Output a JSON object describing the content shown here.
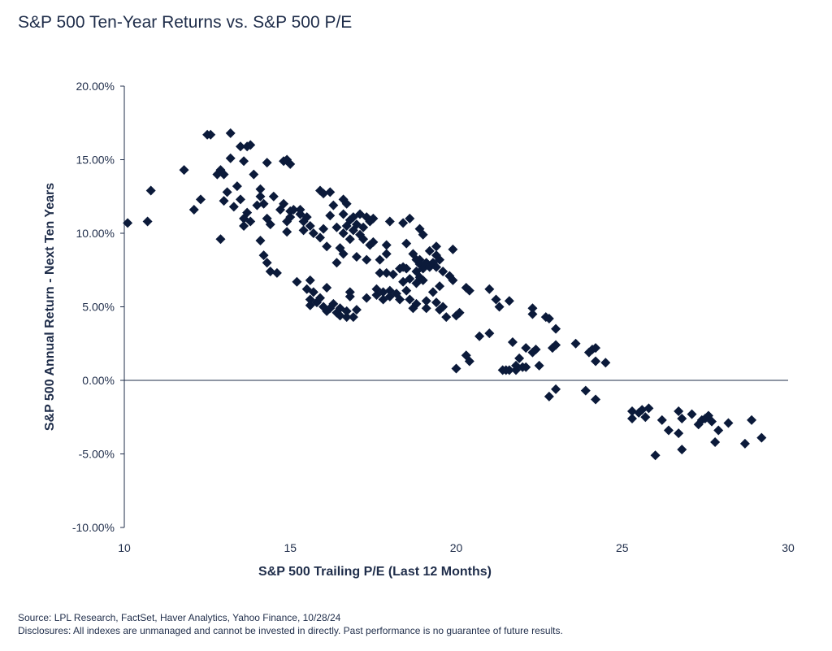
{
  "title": "S&P 500 Ten-Year Returns vs. S&P 500 P/E",
  "footnotes": {
    "source": "Source: LPL Research, FactSet, Haver Analytics, Yahoo Finance, 10/28/24",
    "disclosure": "Disclosures: All indexes are unmanaged and cannot be invested in directly. Past performance is no guarantee of future results."
  },
  "colors": {
    "marker": "#0b1a3a",
    "text": "#1f2d4a",
    "axis": "#1f2d4a"
  },
  "chart_data": {
    "type": "scatter",
    "title": "S&P 500 Ten-Year Returns vs. S&P 500 P/E",
    "xlabel": "S&P 500 Trailing P/E (Last 12 Months)",
    "ylabel": "S&P 500 Annual Return - Next Ten Years",
    "xlim": [
      10,
      30
    ],
    "ylim": [
      -10,
      20
    ],
    "x_ticks": [
      10,
      15,
      20,
      25,
      30
    ],
    "x_tick_labels": [
      "10",
      "15",
      "20",
      "25",
      "30"
    ],
    "y_ticks": [
      20,
      15,
      10,
      5,
      0,
      -5,
      -10
    ],
    "y_tick_labels": [
      "20.00%",
      "15.00%",
      "10.00%",
      "5.00%",
      "0.00%",
      "-5.00%",
      "-10.00%"
    ],
    "grid": false,
    "marker": "diamond",
    "points": [
      [
        10.1,
        10.7
      ],
      [
        10.7,
        10.8
      ],
      [
        10.8,
        12.9
      ],
      [
        11.8,
        14.3
      ],
      [
        12.1,
        11.6
      ],
      [
        12.3,
        12.3
      ],
      [
        12.5,
        16.7
      ],
      [
        12.6,
        16.7
      ],
      [
        12.8,
        14.0
      ],
      [
        12.9,
        14.3
      ],
      [
        12.9,
        9.6
      ],
      [
        13.0,
        14.0
      ],
      [
        13.0,
        12.2
      ],
      [
        13.1,
        12.8
      ],
      [
        13.2,
        16.8
      ],
      [
        13.2,
        15.1
      ],
      [
        13.3,
        11.8
      ],
      [
        13.4,
        13.2
      ],
      [
        13.5,
        15.9
      ],
      [
        13.5,
        12.3
      ],
      [
        13.6,
        14.9
      ],
      [
        13.6,
        11.0
      ],
      [
        13.6,
        10.5
      ],
      [
        13.7,
        15.9
      ],
      [
        13.7,
        11.4
      ],
      [
        13.8,
        16.0
      ],
      [
        13.8,
        10.8
      ],
      [
        13.9,
        14.0
      ],
      [
        14.0,
        11.9
      ],
      [
        14.1,
        13.0
      ],
      [
        14.1,
        12.5
      ],
      [
        14.1,
        9.5
      ],
      [
        14.2,
        8.5
      ],
      [
        14.2,
        12.0
      ],
      [
        14.3,
        14.8
      ],
      [
        14.3,
        11.0
      ],
      [
        14.3,
        8.0
      ],
      [
        14.4,
        10.6
      ],
      [
        14.4,
        7.4
      ],
      [
        14.5,
        12.5
      ],
      [
        14.6,
        7.3
      ],
      [
        14.7,
        11.6
      ],
      [
        14.8,
        12.0
      ],
      [
        14.8,
        14.9
      ],
      [
        14.9,
        15.0
      ],
      [
        14.9,
        10.8
      ],
      [
        14.9,
        10.1
      ],
      [
        15.0,
        14.7
      ],
      [
        15.0,
        11.5
      ],
      [
        15.0,
        11.1
      ],
      [
        15.1,
        11.6
      ],
      [
        15.2,
        6.7
      ],
      [
        15.3,
        11.3
      ],
      [
        15.3,
        11.6
      ],
      [
        15.4,
        10.8
      ],
      [
        15.4,
        10.2
      ],
      [
        15.5,
        11.1
      ],
      [
        15.5,
        6.2
      ],
      [
        15.6,
        10.5
      ],
      [
        15.6,
        6.8
      ],
      [
        15.6,
        5.5
      ],
      [
        15.6,
        5.1
      ],
      [
        15.7,
        10.0
      ],
      [
        15.7,
        6.0
      ],
      [
        15.8,
        5.3
      ],
      [
        15.9,
        12.9
      ],
      [
        15.9,
        9.7
      ],
      [
        15.9,
        5.6
      ],
      [
        16.0,
        12.7
      ],
      [
        16.0,
        10.3
      ],
      [
        16.0,
        5.0
      ],
      [
        16.1,
        9.1
      ],
      [
        16.1,
        6.3
      ],
      [
        16.1,
        4.7
      ],
      [
        16.2,
        12.8
      ],
      [
        16.2,
        11.2
      ],
      [
        16.2,
        4.9
      ],
      [
        16.3,
        11.9
      ],
      [
        16.3,
        5.2
      ],
      [
        16.4,
        10.4
      ],
      [
        16.4,
        8.0
      ],
      [
        16.4,
        4.6
      ],
      [
        16.5,
        9.0
      ],
      [
        16.5,
        4.4
      ],
      [
        16.5,
        4.9
      ],
      [
        16.6,
        12.3
      ],
      [
        16.6,
        11.3
      ],
      [
        16.6,
        10.0
      ],
      [
        16.6,
        8.6
      ],
      [
        16.7,
        12.0
      ],
      [
        16.7,
        10.5
      ],
      [
        16.7,
        4.7
      ],
      [
        16.7,
        4.3
      ],
      [
        16.8,
        10.9
      ],
      [
        16.8,
        9.6
      ],
      [
        16.8,
        6.0
      ],
      [
        16.8,
        5.7
      ],
      [
        16.9,
        11.1
      ],
      [
        16.9,
        10.2
      ],
      [
        16.9,
        4.3
      ],
      [
        17.0,
        10.6
      ],
      [
        17.0,
        8.4
      ],
      [
        17.0,
        4.8
      ],
      [
        17.1,
        11.3
      ],
      [
        17.1,
        9.9
      ],
      [
        17.2,
        10.4
      ],
      [
        17.2,
        9.6
      ],
      [
        17.3,
        11.1
      ],
      [
        17.3,
        8.2
      ],
      [
        17.3,
        5.6
      ],
      [
        17.4,
        10.8
      ],
      [
        17.4,
        9.2
      ],
      [
        17.5,
        11.0
      ],
      [
        17.5,
        9.4
      ],
      [
        17.6,
        6.2
      ],
      [
        17.6,
        5.8
      ],
      [
        17.7,
        8.2
      ],
      [
        17.7,
        7.3
      ],
      [
        17.8,
        6.0
      ],
      [
        17.8,
        5.5
      ],
      [
        17.9,
        9.2
      ],
      [
        17.9,
        8.6
      ],
      [
        17.9,
        7.3
      ],
      [
        18.0,
        10.8
      ],
      [
        18.0,
        6.1
      ],
      [
        18.0,
        5.7
      ],
      [
        18.1,
        7.2
      ],
      [
        18.2,
        5.9
      ],
      [
        18.3,
        7.6
      ],
      [
        18.3,
        5.5
      ],
      [
        18.4,
        10.7
      ],
      [
        18.4,
        7.7
      ],
      [
        18.4,
        6.7
      ],
      [
        18.5,
        9.3
      ],
      [
        18.5,
        7.6
      ],
      [
        18.5,
        6.1
      ],
      [
        18.6,
        11.0
      ],
      [
        18.6,
        6.9
      ],
      [
        18.6,
        5.5
      ],
      [
        18.7,
        8.6
      ],
      [
        18.7,
        4.9
      ],
      [
        18.8,
        8.2
      ],
      [
        18.8,
        7.4
      ],
      [
        18.8,
        6.6
      ],
      [
        18.8,
        5.2
      ],
      [
        18.9,
        10.3
      ],
      [
        18.9,
        8.2
      ],
      [
        18.9,
        7.9
      ],
      [
        18.9,
        7.0
      ],
      [
        19.0,
        9.9
      ],
      [
        19.0,
        7.6
      ],
      [
        19.0,
        6.8
      ],
      [
        19.1,
        8.0
      ],
      [
        19.1,
        5.4
      ],
      [
        19.1,
        4.9
      ],
      [
        19.2,
        8.8
      ],
      [
        19.2,
        7.7
      ],
      [
        19.3,
        8.0
      ],
      [
        19.3,
        6.0
      ],
      [
        19.4,
        9.1
      ],
      [
        19.4,
        8.5
      ],
      [
        19.4,
        7.7
      ],
      [
        19.4,
        5.3
      ],
      [
        19.5,
        8.2
      ],
      [
        19.5,
        6.4
      ],
      [
        19.5,
        4.8
      ],
      [
        19.6,
        7.4
      ],
      [
        19.6,
        5.0
      ],
      [
        19.7,
        4.3
      ],
      [
        19.8,
        7.1
      ],
      [
        19.9,
        8.9
      ],
      [
        19.9,
        6.8
      ],
      [
        20.0,
        4.4
      ],
      [
        20.1,
        4.6
      ],
      [
        20.0,
        0.8
      ],
      [
        20.3,
        6.3
      ],
      [
        20.4,
        6.1
      ],
      [
        20.3,
        1.7
      ],
      [
        20.4,
        1.3
      ],
      [
        20.7,
        3.0
      ],
      [
        21.0,
        6.2
      ],
      [
        21.0,
        3.2
      ],
      [
        21.2,
        5.5
      ],
      [
        21.3,
        5.0
      ],
      [
        21.4,
        0.7
      ],
      [
        21.5,
        0.7
      ],
      [
        21.6,
        5.4
      ],
      [
        21.6,
        0.7
      ],
      [
        21.7,
        2.6
      ],
      [
        21.8,
        0.7
      ],
      [
        21.8,
        1.0
      ],
      [
        21.9,
        1.5
      ],
      [
        22.0,
        0.9
      ],
      [
        22.1,
        2.2
      ],
      [
        22.1,
        0.9
      ],
      [
        22.3,
        4.9
      ],
      [
        22.3,
        4.5
      ],
      [
        22.3,
        1.9
      ],
      [
        22.4,
        2.1
      ],
      [
        22.5,
        1.0
      ],
      [
        22.7,
        4.3
      ],
      [
        22.8,
        4.2
      ],
      [
        22.8,
        -1.1
      ],
      [
        22.9,
        2.2
      ],
      [
        23.0,
        2.4
      ],
      [
        23.0,
        3.5
      ],
      [
        23.0,
        -0.6
      ],
      [
        23.6,
        2.5
      ],
      [
        23.9,
        -0.7
      ],
      [
        24.0,
        1.9
      ],
      [
        24.1,
        2.1
      ],
      [
        24.2,
        2.2
      ],
      [
        24.2,
        1.3
      ],
      [
        24.2,
        -1.3
      ],
      [
        24.5,
        1.2
      ],
      [
        25.3,
        -2.1
      ],
      [
        25.3,
        -2.6
      ],
      [
        25.5,
        -2.2
      ],
      [
        25.6,
        -2.0
      ],
      [
        25.7,
        -2.5
      ],
      [
        25.8,
        -1.9
      ],
      [
        26.0,
        -5.1
      ],
      [
        26.2,
        -2.7
      ],
      [
        26.4,
        -3.4
      ],
      [
        26.7,
        -2.1
      ],
      [
        26.7,
        -3.6
      ],
      [
        26.8,
        -2.6
      ],
      [
        26.8,
        -4.7
      ],
      [
        27.1,
        -2.3
      ],
      [
        27.3,
        -3.0
      ],
      [
        27.4,
        -2.7
      ],
      [
        27.5,
        -2.6
      ],
      [
        27.6,
        -2.4
      ],
      [
        27.7,
        -2.8
      ],
      [
        27.8,
        -4.2
      ],
      [
        27.9,
        -3.4
      ],
      [
        28.2,
        -2.9
      ],
      [
        28.7,
        -4.3
      ],
      [
        28.9,
        -2.7
      ],
      [
        29.2,
        -3.9
      ]
    ]
  }
}
